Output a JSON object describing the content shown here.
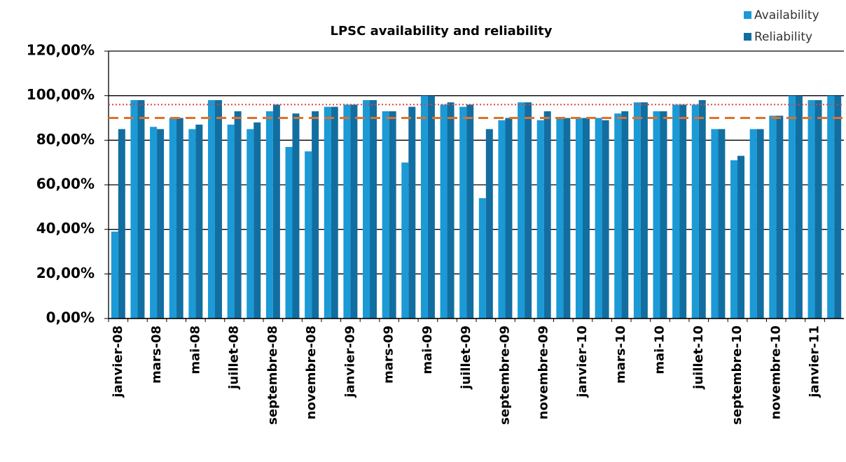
{
  "chart_data": {
    "type": "bar",
    "title": "LPSC availability and reliability",
    "categories": [
      "janvier-08",
      null,
      "mars-08",
      null,
      "mai-08",
      null,
      "juillet-08",
      null,
      "septembre-08",
      null,
      "novembre-08",
      null,
      "janvier-09",
      null,
      "mars-09",
      null,
      "mai-09",
      null,
      "juillet-09",
      null,
      "septembre-09",
      null,
      "novembre-09",
      null,
      "janvier-10",
      null,
      "mars-10",
      null,
      "mai-10",
      null,
      "juillet-10",
      null,
      "septembre-10",
      null,
      "novembre-10",
      null,
      "janvier-11",
      null
    ],
    "series": [
      {
        "name": "Availability",
        "color": "#1b9ad6",
        "values": [
          39,
          98,
          86,
          90,
          85,
          98,
          87,
          85,
          93,
          77,
          75,
          95,
          96,
          98,
          93,
          70,
          100,
          96,
          95,
          54,
          89,
          97,
          89,
          90,
          90,
          90,
          92,
          97,
          93,
          96,
          96,
          85,
          71,
          85,
          91,
          100,
          98,
          100
        ]
      },
      {
        "name": "Reliability",
        "color": "#126ea0",
        "values": [
          85,
          98,
          85,
          90,
          87,
          98,
          93,
          88,
          96,
          92,
          93,
          95,
          96,
          98,
          93,
          95,
          100,
          97,
          96,
          85,
          90,
          97,
          93,
          90,
          90,
          89,
          93,
          97,
          93,
          96,
          98,
          85,
          73,
          85,
          91,
          100,
          98,
          100
        ]
      }
    ],
    "ylim": [
      0,
      120
    ],
    "yticks": [
      {
        "value": 0,
        "label": "0,00%"
      },
      {
        "value": 20,
        "label": "20,00%"
      },
      {
        "value": 40,
        "label": "40,00%"
      },
      {
        "value": 60,
        "label": "60,00%"
      },
      {
        "value": 80,
        "label": "80,00%"
      },
      {
        "value": 100,
        "label": "100,00%"
      },
      {
        "value": 120,
        "label": "120,00%"
      }
    ],
    "grid": true,
    "legend": "top-right",
    "reference_lines": [
      {
        "value": 96,
        "color": "#d9463a",
        "style": "dotted"
      },
      {
        "value": 90,
        "color": "#e0702a",
        "style": "dashed"
      }
    ]
  }
}
